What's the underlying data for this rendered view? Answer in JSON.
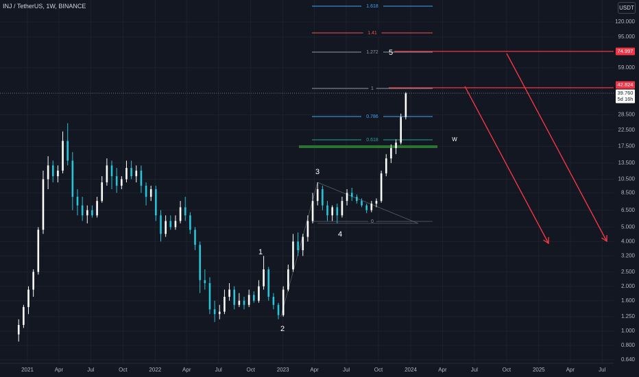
{
  "header": {
    "symbol": "INJ / TetherUS, 1W, BINANCE",
    "unit": "USDT"
  },
  "colors": {
    "background": "#131722",
    "up": "#ffffff",
    "down": "#26c6da",
    "fib_1618": "#42a5f5",
    "fib_141": "#ef5350",
    "fib_gray": "#9598a1",
    "fib_blue": "#2962ff",
    "target_line": "#f23645",
    "green_zone": "#2e7d32"
  },
  "chart_data": {
    "type": "candlestick",
    "price_scale": "log",
    "ylim": [
      0.55,
      210
    ],
    "y_ticks": [
      "120.000",
      "95.000",
      "59.000",
      "28.500",
      "22.500",
      "17.500",
      "13.500",
      "10.500",
      "8.500",
      "6.500",
      "5.000",
      "4.000",
      "3.200",
      "2.500",
      "2.000",
      "1.600",
      "1.250",
      "1.000",
      "0.800",
      "0.640"
    ],
    "x_ticks": [
      "2021",
      "Apr",
      "Jul",
      "Oct",
      "2022",
      "Apr",
      "Jul",
      "Oct",
      "2023",
      "Apr",
      "Jul",
      "Oct",
      "2024",
      "Apr",
      "Jul",
      "Oct",
      "2025",
      "Apr",
      "Jul"
    ],
    "price_labels": [
      {
        "text": "74.997",
        "value": 74.997,
        "style": "red"
      },
      {
        "text": "42.824",
        "value": 42.824,
        "style": "red"
      },
      {
        "text": "39.760",
        "value": 39.76,
        "style": "white"
      },
      {
        "text": "5d 16h",
        "value": 37.2,
        "style": "white"
      }
    ],
    "fib_levels": [
      {
        "label": "1.618",
        "color": "#42a5f5"
      },
      {
        "label": "1.41",
        "color": "#ef5350"
      },
      {
        "label": "1.272",
        "color": "#9598a1"
      },
      {
        "label": "1",
        "color": "#9598a1"
      },
      {
        "label": "0.786",
        "color": "#42a5f5"
      },
      {
        "label": "0.618",
        "color": "#26a69a"
      },
      {
        "label": "0",
        "color": "#9598a1"
      }
    ],
    "wave_labels": [
      "1",
      "2",
      "3",
      "4",
      "5",
      "W"
    ],
    "current_price": 39.76,
    "targets": [
      74.997,
      42.824
    ],
    "target_arrows": [
      {
        "from_date": "2023-12-18",
        "from_price": 42.824,
        "to_date": "2024-09-20",
        "to_price": 3.9
      },
      {
        "from_date": "2024-04-20",
        "from_price": 74.997,
        "to_date": "2025-07-15",
        "to_price": 3.9
      }
    ],
    "candles": [
      {
        "date": "2020-12-07",
        "o": 0.95,
        "h": 1.2,
        "l": 0.85,
        "c": 1.1
      },
      {
        "date": "2020-12-21",
        "o": 1.1,
        "h": 1.5,
        "l": 1.05,
        "c": 1.45
      },
      {
        "date": "2021-01-04",
        "o": 1.45,
        "h": 2.0,
        "l": 1.3,
        "c": 1.9
      },
      {
        "date": "2021-01-18",
        "o": 1.9,
        "h": 2.6,
        "l": 1.7,
        "c": 2.5
      },
      {
        "date": "2021-02-01",
        "o": 2.5,
        "h": 5.0,
        "l": 2.4,
        "c": 4.8
      },
      {
        "date": "2021-02-15",
        "o": 4.8,
        "h": 12.0,
        "l": 4.5,
        "c": 10.5
      },
      {
        "date": "2021-03-01",
        "o": 10.5,
        "h": 15.0,
        "l": 9.0,
        "c": 13.0
      },
      {
        "date": "2021-03-15",
        "o": 13.0,
        "h": 14.0,
        "l": 10.0,
        "c": 11.0
      },
      {
        "date": "2021-03-29",
        "o": 11.0,
        "h": 13.0,
        "l": 10.0,
        "c": 12.0
      },
      {
        "date": "2021-04-12",
        "o": 12.0,
        "h": 22.0,
        "l": 11.5,
        "c": 19.0
      },
      {
        "date": "2021-04-26",
        "o": 19.0,
        "h": 25.0,
        "l": 13.0,
        "c": 14.0
      },
      {
        "date": "2021-05-10",
        "o": 14.0,
        "h": 16.0,
        "l": 6.5,
        "c": 8.0
      },
      {
        "date": "2021-05-24",
        "o": 8.0,
        "h": 9.0,
        "l": 6.0,
        "c": 7.0
      },
      {
        "date": "2021-06-07",
        "o": 7.0,
        "h": 8.0,
        "l": 5.5,
        "c": 6.0
      },
      {
        "date": "2021-06-21",
        "o": 6.0,
        "h": 7.0,
        "l": 5.3,
        "c": 6.5
      },
      {
        "date": "2021-07-05",
        "o": 6.5,
        "h": 7.0,
        "l": 5.8,
        "c": 6.0
      },
      {
        "date": "2021-07-19",
        "o": 6.0,
        "h": 8.0,
        "l": 5.8,
        "c": 7.5
      },
      {
        "date": "2021-08-02",
        "o": 7.5,
        "h": 11.0,
        "l": 7.3,
        "c": 10.0
      },
      {
        "date": "2021-08-16",
        "o": 10.0,
        "h": 14.5,
        "l": 9.5,
        "c": 13.0
      },
      {
        "date": "2021-08-30",
        "o": 13.0,
        "h": 14.0,
        "l": 9.0,
        "c": 11.0
      },
      {
        "date": "2021-09-13",
        "o": 11.0,
        "h": 12.5,
        "l": 8.5,
        "c": 9.5
      },
      {
        "date": "2021-09-27",
        "o": 9.5,
        "h": 11.0,
        "l": 9.0,
        "c": 10.5
      },
      {
        "date": "2021-10-11",
        "o": 10.5,
        "h": 14.0,
        "l": 10.0,
        "c": 12.5
      },
      {
        "date": "2021-10-25",
        "o": 12.5,
        "h": 14.0,
        "l": 10.5,
        "c": 11.0
      },
      {
        "date": "2021-11-08",
        "o": 11.0,
        "h": 13.0,
        "l": 10.0,
        "c": 12.0
      },
      {
        "date": "2021-11-22",
        "o": 12.0,
        "h": 13.0,
        "l": 8.5,
        "c": 9.5
      },
      {
        "date": "2021-12-06",
        "o": 9.5,
        "h": 10.0,
        "l": 7.0,
        "c": 8.0
      },
      {
        "date": "2021-12-20",
        "o": 8.0,
        "h": 9.5,
        "l": 7.5,
        "c": 9.0
      },
      {
        "date": "2022-01-03",
        "o": 9.0,
        "h": 9.5,
        "l": 5.5,
        "c": 6.0
      },
      {
        "date": "2022-01-17",
        "o": 6.0,
        "h": 6.5,
        "l": 4.0,
        "c": 4.5
      },
      {
        "date": "2022-01-31",
        "o": 4.5,
        "h": 6.0,
        "l": 4.3,
        "c": 5.5
      },
      {
        "date": "2022-02-14",
        "o": 5.5,
        "h": 6.0,
        "l": 4.8,
        "c": 5.0
      },
      {
        "date": "2022-02-28",
        "o": 5.0,
        "h": 6.0,
        "l": 4.8,
        "c": 5.5
      },
      {
        "date": "2022-03-14",
        "o": 5.5,
        "h": 7.5,
        "l": 5.3,
        "c": 6.8
      },
      {
        "date": "2022-03-28",
        "o": 6.8,
        "h": 8.0,
        "l": 5.5,
        "c": 6.0
      },
      {
        "date": "2022-04-11",
        "o": 6.0,
        "h": 6.3,
        "l": 4.5,
        "c": 4.8
      },
      {
        "date": "2022-04-25",
        "o": 4.8,
        "h": 5.0,
        "l": 3.5,
        "c": 3.8
      },
      {
        "date": "2022-05-09",
        "o": 3.8,
        "h": 4.0,
        "l": 1.8,
        "c": 2.2
      },
      {
        "date": "2022-05-23",
        "o": 2.2,
        "h": 2.6,
        "l": 1.9,
        "c": 2.1
      },
      {
        "date": "2022-06-06",
        "o": 2.1,
        "h": 2.3,
        "l": 1.3,
        "c": 1.4
      },
      {
        "date": "2022-06-20",
        "o": 1.4,
        "h": 1.6,
        "l": 1.15,
        "c": 1.3
      },
      {
        "date": "2022-07-04",
        "o": 1.3,
        "h": 1.5,
        "l": 1.2,
        "c": 1.35
      },
      {
        "date": "2022-07-18",
        "o": 1.35,
        "h": 1.9,
        "l": 1.3,
        "c": 1.7
      },
      {
        "date": "2022-08-01",
        "o": 1.7,
        "h": 2.1,
        "l": 1.6,
        "c": 1.9
      },
      {
        "date": "2022-08-15",
        "o": 1.9,
        "h": 2.0,
        "l": 1.4,
        "c": 1.5
      },
      {
        "date": "2022-08-29",
        "o": 1.5,
        "h": 1.8,
        "l": 1.45,
        "c": 1.6
      },
      {
        "date": "2022-09-12",
        "o": 1.6,
        "h": 1.7,
        "l": 1.4,
        "c": 1.5
      },
      {
        "date": "2022-09-26",
        "o": 1.5,
        "h": 1.9,
        "l": 1.45,
        "c": 1.75
      },
      {
        "date": "2022-10-10",
        "o": 1.75,
        "h": 1.85,
        "l": 1.55,
        "c": 1.6
      },
      {
        "date": "2022-10-24",
        "o": 1.6,
        "h": 2.2,
        "l": 1.55,
        "c": 2.0
      },
      {
        "date": "2022-11-07",
        "o": 2.0,
        "h": 3.2,
        "l": 1.9,
        "c": 2.6
      },
      {
        "date": "2022-11-21",
        "o": 2.6,
        "h": 2.7,
        "l": 1.6,
        "c": 1.7
      },
      {
        "date": "2022-12-05",
        "o": 1.7,
        "h": 1.8,
        "l": 1.4,
        "c": 1.5
      },
      {
        "date": "2022-12-19",
        "o": 1.5,
        "h": 1.55,
        "l": 1.2,
        "c": 1.28
      },
      {
        "date": "2023-01-02",
        "o": 1.28,
        "h": 2.0,
        "l": 1.25,
        "c": 1.9
      },
      {
        "date": "2023-01-16",
        "o": 1.9,
        "h": 2.8,
        "l": 1.85,
        "c": 2.6
      },
      {
        "date": "2023-01-30",
        "o": 2.6,
        "h": 4.5,
        "l": 2.5,
        "c": 4.0
      },
      {
        "date": "2023-02-13",
        "o": 4.0,
        "h": 4.6,
        "l": 3.2,
        "c": 3.5
      },
      {
        "date": "2023-02-27",
        "o": 3.5,
        "h": 4.5,
        "l": 3.2,
        "c": 4.3
      },
      {
        "date": "2023-03-13",
        "o": 4.3,
        "h": 6.0,
        "l": 4.0,
        "c": 5.5
      },
      {
        "date": "2023-03-27",
        "o": 5.5,
        "h": 8.5,
        "l": 5.3,
        "c": 7.5
      },
      {
        "date": "2023-04-10",
        "o": 7.5,
        "h": 10.0,
        "l": 7.0,
        "c": 9.0
      },
      {
        "date": "2023-04-24",
        "o": 9.0,
        "h": 9.5,
        "l": 6.5,
        "c": 7.0
      },
      {
        "date": "2023-05-08",
        "o": 7.0,
        "h": 7.5,
        "l": 5.5,
        "c": 6.0
      },
      {
        "date": "2023-05-22",
        "o": 6.0,
        "h": 7.0,
        "l": 5.5,
        "c": 6.8
      },
      {
        "date": "2023-06-05",
        "o": 6.8,
        "h": 7.2,
        "l": 5.3,
        "c": 6.0
      },
      {
        "date": "2023-06-19",
        "o": 6.0,
        "h": 8.0,
        "l": 5.8,
        "c": 7.5
      },
      {
        "date": "2023-07-03",
        "o": 7.5,
        "h": 9.0,
        "l": 7.0,
        "c": 8.5
      },
      {
        "date": "2023-07-17",
        "o": 8.5,
        "h": 9.2,
        "l": 7.5,
        "c": 8.0
      },
      {
        "date": "2023-07-31",
        "o": 8.0,
        "h": 8.3,
        "l": 7.2,
        "c": 7.5
      },
      {
        "date": "2023-08-14",
        "o": 7.5,
        "h": 7.8,
        "l": 6.8,
        "c": 7.0
      },
      {
        "date": "2023-08-28",
        "o": 7.0,
        "h": 7.2,
        "l": 6.2,
        "c": 6.5
      },
      {
        "date": "2023-09-11",
        "o": 6.5,
        "h": 7.5,
        "l": 6.3,
        "c": 7.2
      },
      {
        "date": "2023-09-25",
        "o": 7.2,
        "h": 7.8,
        "l": 6.8,
        "c": 7.5
      },
      {
        "date": "2023-10-09",
        "o": 7.5,
        "h": 12.0,
        "l": 7.3,
        "c": 11.5
      },
      {
        "date": "2023-10-23",
        "o": 11.5,
        "h": 15.5,
        "l": 11.0,
        "c": 14.5
      },
      {
        "date": "2023-11-06",
        "o": 14.5,
        "h": 18.0,
        "l": 13.5,
        "c": 17.0
      },
      {
        "date": "2023-11-20",
        "o": 17.0,
        "h": 19.5,
        "l": 15.5,
        "c": 18.5
      },
      {
        "date": "2023-12-04",
        "o": 18.5,
        "h": 29.0,
        "l": 18.0,
        "c": 27.5
      },
      {
        "date": "2023-12-18",
        "o": 27.5,
        "h": 40.5,
        "l": 26.5,
        "c": 39.76
      }
    ]
  }
}
